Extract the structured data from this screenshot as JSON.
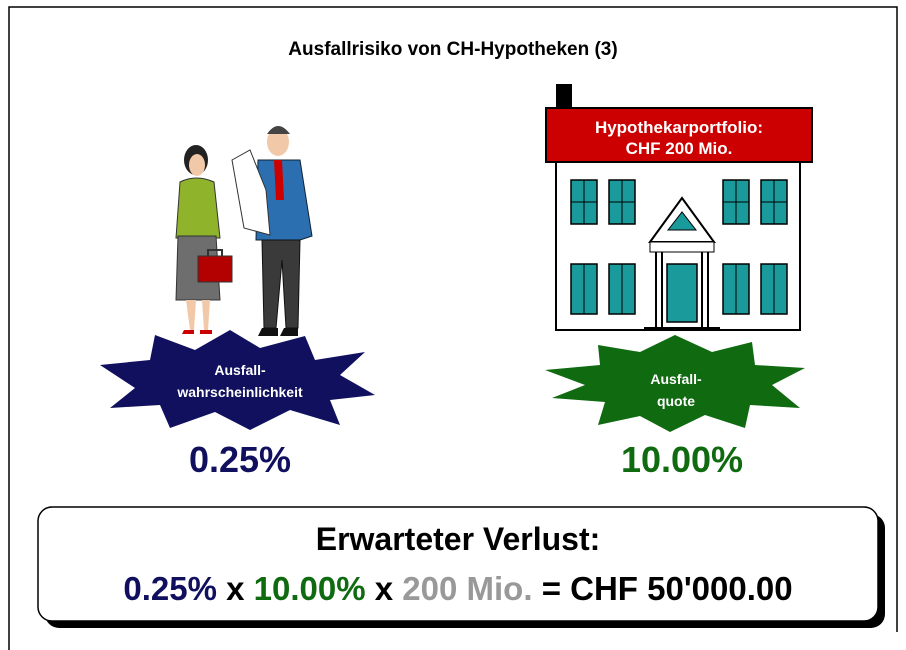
{
  "title": "Ausfallrisiko von CH-Hypotheken (3)",
  "house_sign": {
    "line1": "Hypothekarportfolio:",
    "line2": "CHF 200 Mio."
  },
  "left_burst": {
    "line1": "Ausfall-",
    "line2": "wahrscheinlichkeit",
    "value": "0.25%"
  },
  "right_burst": {
    "line1": "Ausfall-",
    "line2": "quote",
    "value": "10.00%"
  },
  "result_box": {
    "heading": "Erwarteter Verlust:",
    "formula": [
      "0.25%",
      "x",
      "10.00%",
      "x",
      "200 Mio.",
      "= CHF 50'000.00"
    ]
  }
}
